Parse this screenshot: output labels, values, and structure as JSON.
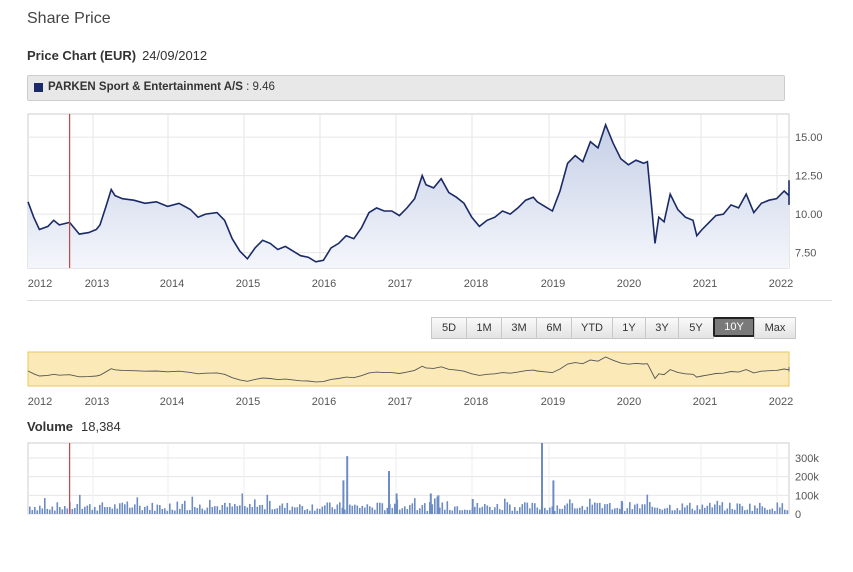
{
  "page": {
    "title": "Share Price"
  },
  "price_chart": {
    "heading_label": "Price Chart (EUR)",
    "date": "24/09/2012",
    "legend": {
      "name": "PARKEN Sport & Entertainment A/S",
      "separator": " : ",
      "value": "9.46",
      "color": "#1a2a66"
    }
  },
  "range_buttons": [
    {
      "label": "5D",
      "active": false
    },
    {
      "label": "1M",
      "active": false
    },
    {
      "label": "3M",
      "active": false
    },
    {
      "label": "6M",
      "active": false
    },
    {
      "label": "YTD",
      "active": false
    },
    {
      "label": "1Y",
      "active": false
    },
    {
      "label": "3Y",
      "active": false
    },
    {
      "label": "5Y",
      "active": false
    },
    {
      "label": "10Y",
      "active": true
    },
    {
      "label": "Max",
      "active": false
    }
  ],
  "volume": {
    "heading_label": "Volume",
    "value": "18,384"
  },
  "colors": {
    "line": "#1a2a66",
    "area_top": "#c5cfe6",
    "area_bottom": "#f4f6fb",
    "marker": "#cc4444",
    "navigator_bg": "#fbeab8",
    "navigator_border": "#e8c460",
    "volume_bar": "#6d8cc4"
  },
  "chart_data": [
    {
      "type": "area",
      "x_tick_labels": [
        "2012",
        "2013",
        "2014",
        "2015",
        "2016",
        "2017",
        "2018",
        "2019",
        "2020",
        "2021",
        "2022"
      ],
      "y_tick_labels": [
        "7.50",
        "10.00",
        "12.50",
        "15.00"
      ],
      "ylim": [
        6.5,
        16.5
      ],
      "xlim": [
        2012.0,
        2022.2
      ],
      "marker_date": 2012.73,
      "series": [
        {
          "points": [
            [
              2012.0,
              10.8
            ],
            [
              2012.1,
              9.8
            ],
            [
              2012.2,
              9.0
            ],
            [
              2012.35,
              9.2
            ],
            [
              2012.45,
              9.6
            ],
            [
              2012.55,
              9.3
            ],
            [
              2012.73,
              9.46
            ],
            [
              2012.9,
              8.7
            ],
            [
              2013.05,
              8.8
            ],
            [
              2013.15,
              9.0
            ],
            [
              2013.2,
              9.3
            ],
            [
              2013.28,
              10.5
            ],
            [
              2013.35,
              11.6
            ],
            [
              2013.4,
              11.2
            ],
            [
              2013.5,
              11.0
            ],
            [
              2013.65,
              10.9
            ],
            [
              2013.8,
              10.7
            ],
            [
              2013.95,
              10.8
            ],
            [
              2014.1,
              10.5
            ],
            [
              2014.25,
              10.7
            ],
            [
              2014.4,
              10.3
            ],
            [
              2014.5,
              9.8
            ],
            [
              2014.6,
              10.0
            ],
            [
              2014.75,
              10.1
            ],
            [
              2014.85,
              9.6
            ],
            [
              2014.95,
              8.4
            ],
            [
              2015.05,
              7.6
            ],
            [
              2015.15,
              7.1
            ],
            [
              2015.25,
              7.8
            ],
            [
              2015.35,
              8.3
            ],
            [
              2015.45,
              8.1
            ],
            [
              2015.55,
              7.7
            ],
            [
              2015.65,
              7.9
            ],
            [
              2015.75,
              7.6
            ],
            [
              2015.85,
              7.3
            ],
            [
              2015.95,
              7.2
            ],
            [
              2016.05,
              6.9
            ],
            [
              2016.15,
              7.0
            ],
            [
              2016.25,
              7.8
            ],
            [
              2016.35,
              8.1
            ],
            [
              2016.45,
              8.6
            ],
            [
              2016.55,
              8.4
            ],
            [
              2016.65,
              9.1
            ],
            [
              2016.75,
              10.1
            ],
            [
              2016.85,
              10.4
            ],
            [
              2016.95,
              10.2
            ],
            [
              2017.05,
              10.2
            ],
            [
              2017.15,
              9.9
            ],
            [
              2017.25,
              10.4
            ],
            [
              2017.35,
              11.0
            ],
            [
              2017.45,
              12.5
            ],
            [
              2017.5,
              11.9
            ],
            [
              2017.6,
              11.7
            ],
            [
              2017.7,
              12.3
            ],
            [
              2017.8,
              11.4
            ],
            [
              2017.9,
              11.1
            ],
            [
              2018.0,
              10.7
            ],
            [
              2018.1,
              9.8
            ],
            [
              2018.2,
              9.2
            ],
            [
              2018.3,
              9.6
            ],
            [
              2018.4,
              9.8
            ],
            [
              2018.5,
              10.2
            ],
            [
              2018.6,
              10.0
            ],
            [
              2018.7,
              10.4
            ],
            [
              2018.8,
              10.9
            ],
            [
              2018.9,
              11.1
            ],
            [
              2018.95,
              10.8
            ],
            [
              2019.05,
              10.5
            ],
            [
              2019.15,
              10.2
            ],
            [
              2019.25,
              11.5
            ],
            [
              2019.35,
              13.3
            ],
            [
              2019.45,
              13.8
            ],
            [
              2019.55,
              13.4
            ],
            [
              2019.65,
              14.7
            ],
            [
              2019.75,
              14.3
            ],
            [
              2019.85,
              15.8
            ],
            [
              2019.95,
              14.6
            ],
            [
              2020.05,
              13.6
            ],
            [
              2020.15,
              13.2
            ],
            [
              2020.25,
              13.5
            ],
            [
              2020.35,
              13.3
            ],
            [
              2020.4,
              13.4
            ],
            [
              2020.45,
              10.8
            ],
            [
              2020.5,
              8.1
            ],
            [
              2020.55,
              9.8
            ],
            [
              2020.62,
              9.5
            ],
            [
              2020.7,
              11.3
            ],
            [
              2020.8,
              10.3
            ],
            [
              2020.9,
              9.8
            ],
            [
              2021.0,
              9.6
            ],
            [
              2021.05,
              8.6
            ],
            [
              2021.12,
              9.0
            ],
            [
              2021.2,
              9.4
            ],
            [
              2021.3,
              9.9
            ],
            [
              2021.4,
              10.0
            ],
            [
              2021.5,
              10.6
            ],
            [
              2021.6,
              10.4
            ],
            [
              2021.7,
              11.3
            ],
            [
              2021.8,
              10.1
            ],
            [
              2021.9,
              10.7
            ],
            [
              2022.0,
              10.9
            ],
            [
              2022.1,
              11.0
            ],
            [
              2022.2,
              11.5
            ],
            [
              2022.3,
              11.2
            ],
            [
              2022.4,
              11.6
            ],
            [
              2022.5,
              10.6
            ],
            [
              2022.55,
              11.7
            ],
            [
              2022.65,
              12.2
            ]
          ]
        }
      ]
    },
    {
      "type": "bar",
      "y_tick_labels": [
        "300k",
        "200k",
        "100k",
        "0"
      ],
      "ylim": [
        0,
        380000
      ],
      "spikes": [
        [
          2016.45,
          310000
        ],
        [
          2016.4,
          180000
        ],
        [
          2017.0,
          230000
        ],
        [
          2019.0,
          380000
        ],
        [
          2019.15,
          180000
        ],
        [
          2017.1,
          110000
        ],
        [
          2017.55,
          110000
        ],
        [
          2017.65,
          100000
        ],
        [
          2018.1,
          80000
        ],
        [
          2020.05,
          70000
        ]
      ]
    }
  ]
}
